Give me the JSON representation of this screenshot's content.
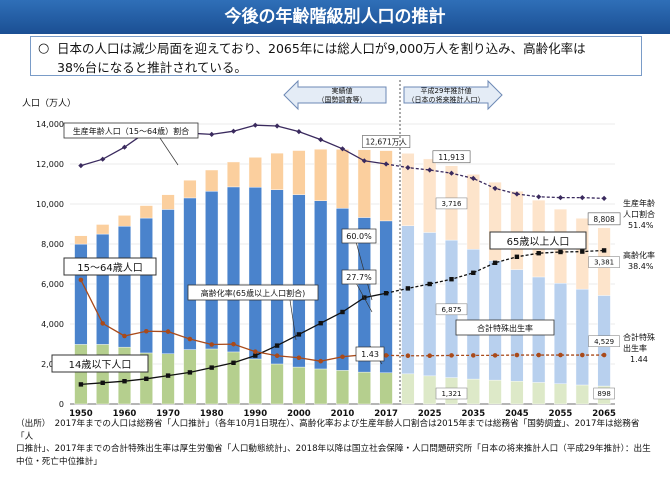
{
  "header": {
    "title": "今後の年齢階級別人口の推計"
  },
  "summary": {
    "bullet": "○",
    "line1": "日本の人口は減少局面を迎えており、2065年には総人口が9,000万人を割り込み、高齢化率は",
    "line2": "38%台になると推計されている。"
  },
  "source": {
    "line1": "（出所）　2017年までの人口は総務省「人口推計」（各年10月1日現在）、高齢化率および生産年齢人口割合は2015年までは総務省「国勢調査」、2017年は総務省「人",
    "line2": "口推計」、2017年までの合計特殊出生率は厚生労働省「人口動態統計」、2018年以降は国立社会保障・人口問題研究所「日本の将来推計人口（平成29年推計）：出生",
    "line3": "中位・死亡中位推計」"
  },
  "colors": {
    "young": "#b5cf8e",
    "working": "#4a83cc",
    "elderly": "#fbcf9e",
    "young_proj": "#dde9c8",
    "working_proj": "#b8d0ee",
    "elderly_proj": "#fde4cb",
    "working_ratio": "#3a2a5e",
    "aging": "#111111",
    "fertility": "#a94a1a"
  },
  "chart_data": {
    "type": "bar",
    "ylabel": "人口（万人）",
    "ylim": [
      0,
      14000
    ],
    "yticks": [
      0,
      2000,
      4000,
      6000,
      8000,
      10000,
      12000,
      14000
    ],
    "ytick_labels": [
      "0",
      "2,000",
      "4,000",
      "6,000",
      "8,000",
      "10,000",
      "12,000",
      "14,000"
    ],
    "x_labels": [
      "1950",
      "1960",
      "1970",
      "1980",
      "1990",
      "2000",
      "2010",
      "2017",
      "2025",
      "2035",
      "2045",
      "2055",
      "2065"
    ],
    "categories": [
      "1950",
      "1955",
      "1960",
      "1965",
      "1970",
      "1975",
      "1980",
      "1985",
      "1990",
      "1995",
      "2000",
      "2005",
      "2010",
      "2015",
      "2017",
      "2020",
      "2025",
      "2030",
      "2035",
      "2040",
      "2045",
      "2050",
      "2055",
      "2060",
      "2065"
    ],
    "projection_start_index": 15,
    "series": [
      {
        "name": "14歳以下人口",
        "values": [
          2979,
          2980,
          2843,
          2553,
          2515,
          2722,
          2751,
          2603,
          2249,
          2001,
          1847,
          1752,
          1680,
          1595,
          1559,
          1507,
          1407,
          1321,
          1246,
          1194,
          1138,
          1077,
          1012,
          951,
          898
        ]
      },
      {
        "name": "15～64歳人口",
        "values": [
          5017,
          5517,
          6047,
          6744,
          7212,
          7581,
          7883,
          8251,
          8590,
          8716,
          8622,
          8409,
          8103,
          7729,
          7596,
          7406,
          7170,
          6875,
          6494,
          5978,
          5584,
          5275,
          5028,
          4793,
          4529
        ]
      },
      {
        "name": "65歳以上人口",
        "values": [
          416,
          479,
          540,
          624,
          739,
          887,
          1065,
          1247,
          1493,
          1826,
          2204,
          2576,
          2948,
          3388,
          3515,
          3619,
          3677,
          3716,
          3741,
          3921,
          3919,
          3841,
          3704,
          3540,
          3381
        ]
      }
    ],
    "totals_labels": [
      {
        "index": 14,
        "text": "12,671万人"
      },
      {
        "index": 17,
        "text": "11,913"
      },
      {
        "index": 24,
        "text": "8,808"
      }
    ],
    "bar_value_labels": [
      {
        "index": 17,
        "series": 2,
        "text": "3,716"
      },
      {
        "index": 17,
        "series": 1,
        "text": "6,875"
      },
      {
        "index": 17,
        "series": 0,
        "text": "1,321"
      },
      {
        "index": 24,
        "series": 2,
        "text": "3,381"
      },
      {
        "index": 24,
        "series": 1,
        "text": "4,529"
      },
      {
        "index": 24,
        "series": 0,
        "text": "898"
      }
    ],
    "lines": [
      {
        "name": "生産年齢人口（15～64歳）割合",
        "unit": "%",
        "values": [
          59.6,
          61.2,
          64.2,
          68.0,
          68.9,
          67.7,
          67.4,
          68.2,
          69.7,
          69.5,
          68.1,
          66.1,
          63.8,
          60.8,
          60.0,
          59.1,
          58.5,
          57.7,
          56.4,
          53.9,
          52.5,
          51.8,
          51.6,
          51.6,
          51.4
        ]
      },
      {
        "name": "高齢化率（65歳以上人口割合）",
        "unit": "%",
        "values": [
          4.9,
          5.3,
          5.7,
          6.3,
          7.1,
          7.9,
          9.1,
          10.3,
          12.1,
          14.6,
          17.4,
          20.2,
          23.0,
          26.6,
          27.7,
          28.9,
          30.0,
          31.2,
          32.8,
          35.3,
          36.8,
          37.7,
          38.0,
          38.1,
          38.4
        ]
      },
      {
        "name": "合計特殊出生率",
        "unit": "",
        "values": [
          3.65,
          2.37,
          2.0,
          2.14,
          2.13,
          1.91,
          1.75,
          1.76,
          1.54,
          1.42,
          1.36,
          1.26,
          1.39,
          1.45,
          1.43,
          1.42,
          1.42,
          1.43,
          1.43,
          1.43,
          1.44,
          1.44,
          1.44,
          1.44,
          1.44
        ]
      }
    ],
    "annotations": {
      "working_ratio_label": "生産年齢人口（15～64歳）割合",
      "aging_label": "高齢化率(65歳以上人口割合)",
      "fertility_label": "合計特殊出生率",
      "young_label": "14歳以下人口",
      "working_label": "15～64歳人口",
      "elderly_label": "65歳以上人口",
      "val_600": "60.0%",
      "val_277": "27.7%",
      "val_143": "1.43",
      "actual_line1": "実績値",
      "actual_line2": "（国勢調査等）",
      "proj_line1": "平成29年推計値",
      "proj_line2": "（日本の将来推計人口）",
      "right_working_1": "生産年齢",
      "right_working_2": "人口割合",
      "right_working_3": "51.4%",
      "right_aging_1": "高齢化率",
      "right_aging_2": "38.4%",
      "right_fert_1": "合計特殊",
      "right_fert_2": "出生率",
      "right_fert_3": "1.44"
    }
  }
}
